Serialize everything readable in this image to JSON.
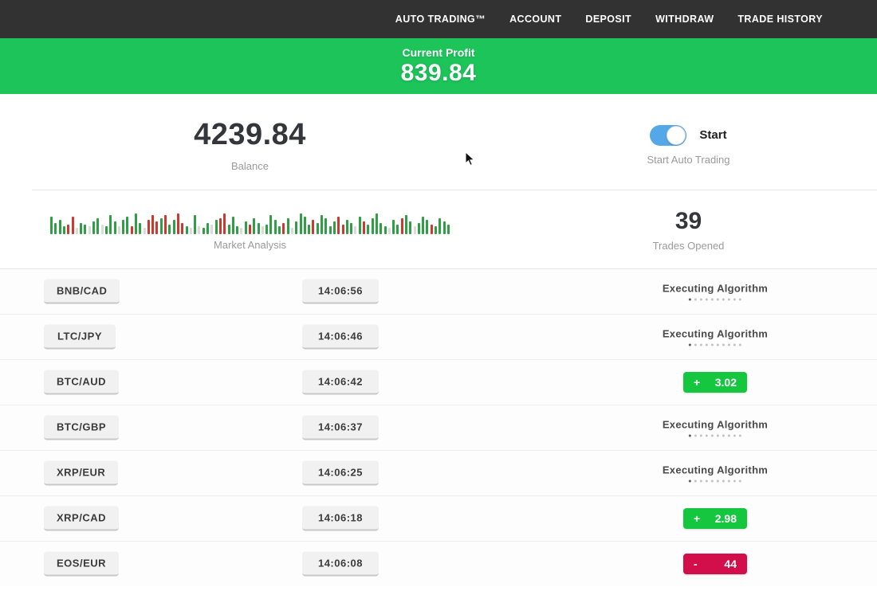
{
  "navbar": {
    "items": [
      {
        "label": "AUTO TRADING™"
      },
      {
        "label": "ACCOUNT"
      },
      {
        "label": "DEPOSIT"
      },
      {
        "label": "WITHDRAW"
      },
      {
        "label": "TRADE HISTORY"
      }
    ]
  },
  "profit_banner": {
    "label": "Current Profit",
    "value": "839.84",
    "bg_color": "#1cc45a"
  },
  "stats": {
    "balance": {
      "value": "4239.84",
      "label": "Balance"
    },
    "auto_trading": {
      "toggle_on": true,
      "toggle_label": "Start",
      "label": "Start Auto Trading",
      "toggle_color": "#55a8e8"
    },
    "market_analysis": {
      "label": "Market Analysis"
    },
    "trades_opened": {
      "value": "39",
      "label": "Trades Opened"
    }
  },
  "chart_data": {
    "type": "bar",
    "title": "Market Analysis",
    "description": "decorative strip of small candlestick-style volume bars, baseline-aligned",
    "colors": {
      "g": "#2f9e44",
      "r": "#c93a31",
      "l": "#d8dbd6"
    },
    "bars": [
      "g22",
      "g14",
      "g18",
      "g10",
      "r12",
      "r22",
      "l8",
      "g14",
      "g12",
      "l10",
      "g16",
      "g20",
      "l12",
      "g10",
      "g24",
      "g16",
      "l10",
      "g18",
      "g22",
      "r10",
      "g26",
      "g14",
      "l8",
      "r18",
      "r24",
      "r16",
      "g20",
      "r24",
      "g12",
      "g18",
      "r26",
      "r14",
      "g10",
      "l8",
      "g24",
      "l10",
      "g8",
      "g14",
      "l12",
      "g18",
      "r20",
      "r26",
      "g12",
      "g22",
      "g10",
      "l8",
      "g16",
      "r12",
      "g20",
      "g14",
      "l10",
      "g12",
      "g24",
      "g18",
      "g10",
      "r14",
      "g20",
      "l8",
      "g16",
      "g26",
      "g22",
      "g12",
      "r18",
      "g14",
      "g24",
      "g20",
      "g10",
      "g16",
      "r22",
      "r12",
      "g18",
      "g14",
      "l10",
      "g22",
      "r16",
      "g12",
      "g20",
      "g26",
      "g14",
      "g10",
      "l8",
      "g18",
      "g12",
      "r20",
      "g24",
      "g16",
      "l10",
      "g14",
      "g22",
      "g18",
      "r12",
      "g10",
      "g20",
      "g16",
      "g12"
    ]
  },
  "trades": [
    {
      "pair": "BNB/CAD",
      "time": "14:06:56",
      "status": "executing",
      "status_label": "Executing Algorithm"
    },
    {
      "pair": "LTC/JPY",
      "time": "14:06:46",
      "status": "executing",
      "status_label": "Executing Algorithm"
    },
    {
      "pair": "BTC/AUD",
      "time": "14:06:42",
      "status": "profit",
      "sign": "+",
      "amount": "3.02"
    },
    {
      "pair": "BTC/GBP",
      "time": "14:06:37",
      "status": "executing",
      "status_label": "Executing Algorithm"
    },
    {
      "pair": "XRP/EUR",
      "time": "14:06:25",
      "status": "executing",
      "status_label": "Executing Algorithm"
    },
    {
      "pair": "XRP/CAD",
      "time": "14:06:18",
      "status": "profit",
      "sign": "+",
      "amount": "2.98"
    },
    {
      "pair": "EOS/EUR",
      "time": "14:06:08",
      "status": "loss",
      "sign": "-",
      "amount": "44"
    }
  ],
  "status_dots_count": 10,
  "colors": {
    "navbar_bg": "#323232",
    "profit_badge": "#15c73f",
    "loss_badge": "#d20f4b"
  }
}
